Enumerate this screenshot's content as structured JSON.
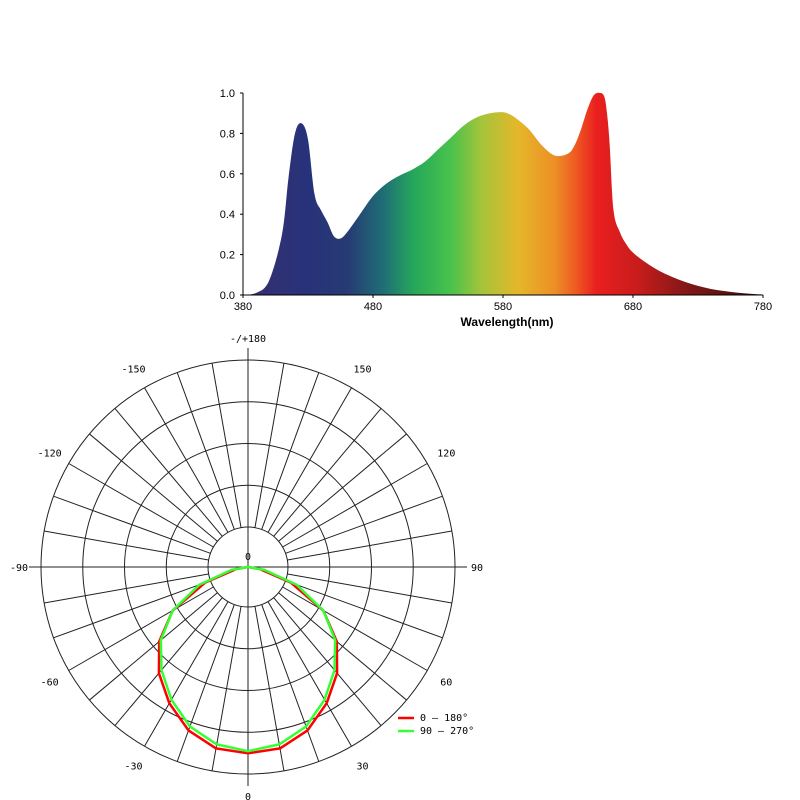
{
  "chart_data": [
    {
      "type": "area",
      "xlabel": "Wavelength(nm)",
      "ylabel": "",
      "xlim": [
        380,
        780
      ],
      "ylim": [
        0,
        1.0
      ],
      "x_ticks": [
        "380",
        "480",
        "580",
        "680",
        "780"
      ],
      "y_ticks": [
        "0.0",
        "0.2",
        "0.4",
        "0.6",
        "0.8",
        "1.0"
      ],
      "fill": "visible-spectrum gradient",
      "x": [
        380,
        390,
        400,
        410,
        415,
        420,
        425,
        430,
        435,
        440,
        445,
        450,
        455,
        460,
        470,
        480,
        490,
        500,
        510,
        520,
        530,
        540,
        550,
        560,
        570,
        580,
        585,
        590,
        600,
        610,
        620,
        630,
        635,
        640,
        645,
        650,
        655,
        658,
        660,
        662,
        665,
        670,
        675,
        680,
        690,
        700,
        710,
        720,
        730,
        740,
        750,
        760,
        770,
        780
      ],
      "y": [
        0.0,
        0.01,
        0.07,
        0.3,
        0.58,
        0.8,
        0.85,
        0.77,
        0.5,
        0.42,
        0.36,
        0.29,
        0.28,
        0.31,
        0.4,
        0.49,
        0.55,
        0.59,
        0.62,
        0.66,
        0.72,
        0.78,
        0.84,
        0.88,
        0.9,
        0.905,
        0.895,
        0.875,
        0.82,
        0.74,
        0.69,
        0.7,
        0.74,
        0.82,
        0.92,
        0.99,
        1.0,
        0.98,
        0.9,
        0.75,
        0.42,
        0.31,
        0.25,
        0.21,
        0.16,
        0.12,
        0.09,
        0.065,
        0.045,
        0.03,
        0.02,
        0.012,
        0.006,
        0.002
      ]
    },
    {
      "type": "polar",
      "angle_labels": [
        {
          "text": "-/+180",
          "angle": 180
        },
        {
          "text": "150",
          "angle": 150
        },
        {
          "text": "120",
          "angle": 120
        },
        {
          "text": "90",
          "angle": 90
        },
        {
          "text": "60",
          "angle": 60
        },
        {
          "text": "30",
          "angle": 30
        },
        {
          "text": "0",
          "angle": 0
        },
        {
          "text": "-30",
          "angle": -30
        },
        {
          "text": "-60",
          "angle": -60
        },
        {
          "text": "-90",
          "angle": -90
        },
        {
          "text": "-120",
          "angle": -120
        },
        {
          "text": "-150",
          "angle": -150
        }
      ],
      "center_label": "0",
      "rlim": [
        0,
        1
      ],
      "ring_count": 5,
      "spoke_step_deg": 10,
      "series": [
        {
          "name": "0 – 180°",
          "color": "#ff0000",
          "angles": [
            -90,
            -80,
            -70,
            -60,
            -50,
            -40,
            -30,
            -20,
            -10,
            0,
            10,
            20,
            30,
            40,
            50,
            60,
            70,
            80,
            90
          ],
          "r": [
            0.0,
            0.06,
            0.22,
            0.42,
            0.56,
            0.67,
            0.76,
            0.84,
            0.89,
            0.9,
            0.89,
            0.84,
            0.76,
            0.67,
            0.56,
            0.42,
            0.22,
            0.06,
            0.0
          ]
        },
        {
          "name": "90 – 270°",
          "color": "#33ff33",
          "angles": [
            -90,
            -80,
            -70,
            -60,
            -50,
            -40,
            -30,
            -20,
            -10,
            0,
            10,
            20,
            30,
            40,
            50,
            60,
            70,
            80,
            90
          ],
          "r": [
            0.0,
            0.08,
            0.25,
            0.42,
            0.55,
            0.65,
            0.74,
            0.82,
            0.87,
            0.89,
            0.87,
            0.82,
            0.74,
            0.65,
            0.55,
            0.42,
            0.25,
            0.08,
            0.0
          ]
        }
      ],
      "legend": [
        {
          "label": "0 – 180°",
          "color": "#ff0000"
        },
        {
          "label": "90 – 270°",
          "color": "#33ff33"
        }
      ]
    }
  ]
}
